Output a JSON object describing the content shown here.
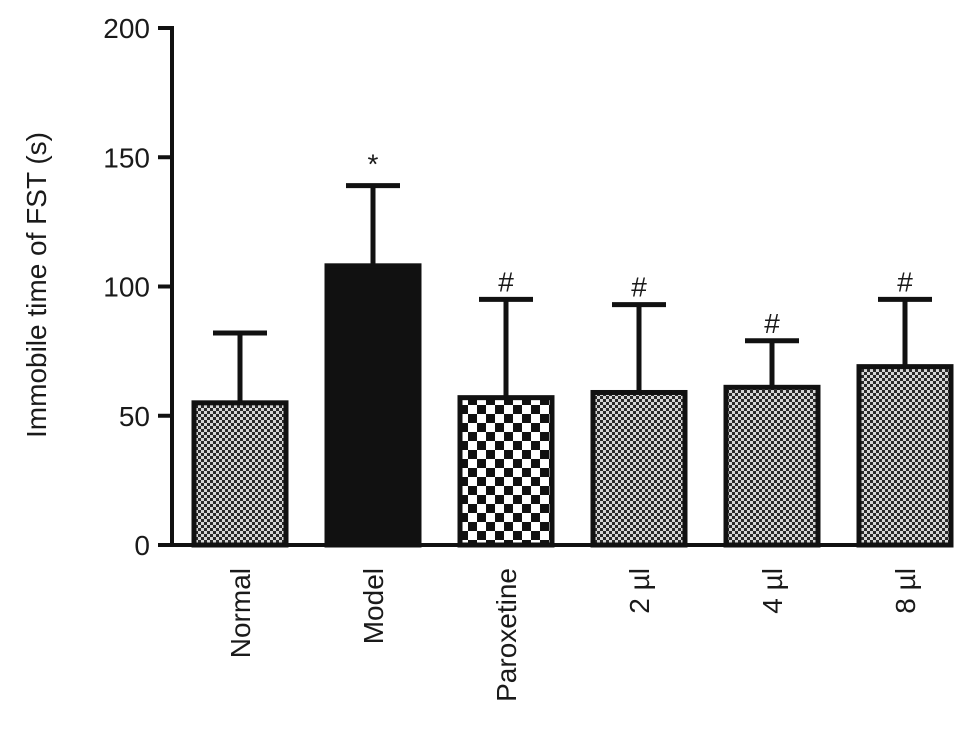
{
  "chart_data": {
    "type": "bar",
    "ylabel": "Immobile time of FST (s)",
    "xlabel": "",
    "ylim": [
      0,
      200
    ],
    "yticks": [
      0,
      50,
      100,
      150,
      200
    ],
    "categories": [
      "Normal",
      "Model",
      "Paroxetine",
      "2 µl",
      "4 µl",
      "8 µl"
    ],
    "values": [
      55,
      108,
      57,
      59,
      61,
      69
    ],
    "errors": [
      27,
      31,
      38,
      34,
      18,
      26
    ],
    "annotations": [
      "",
      "*",
      "#",
      "#",
      "#",
      "#"
    ],
    "patterns": [
      "dots",
      "solid",
      "checker",
      "dots",
      "dots",
      "dots"
    ],
    "grid": false,
    "legend": "none"
  }
}
